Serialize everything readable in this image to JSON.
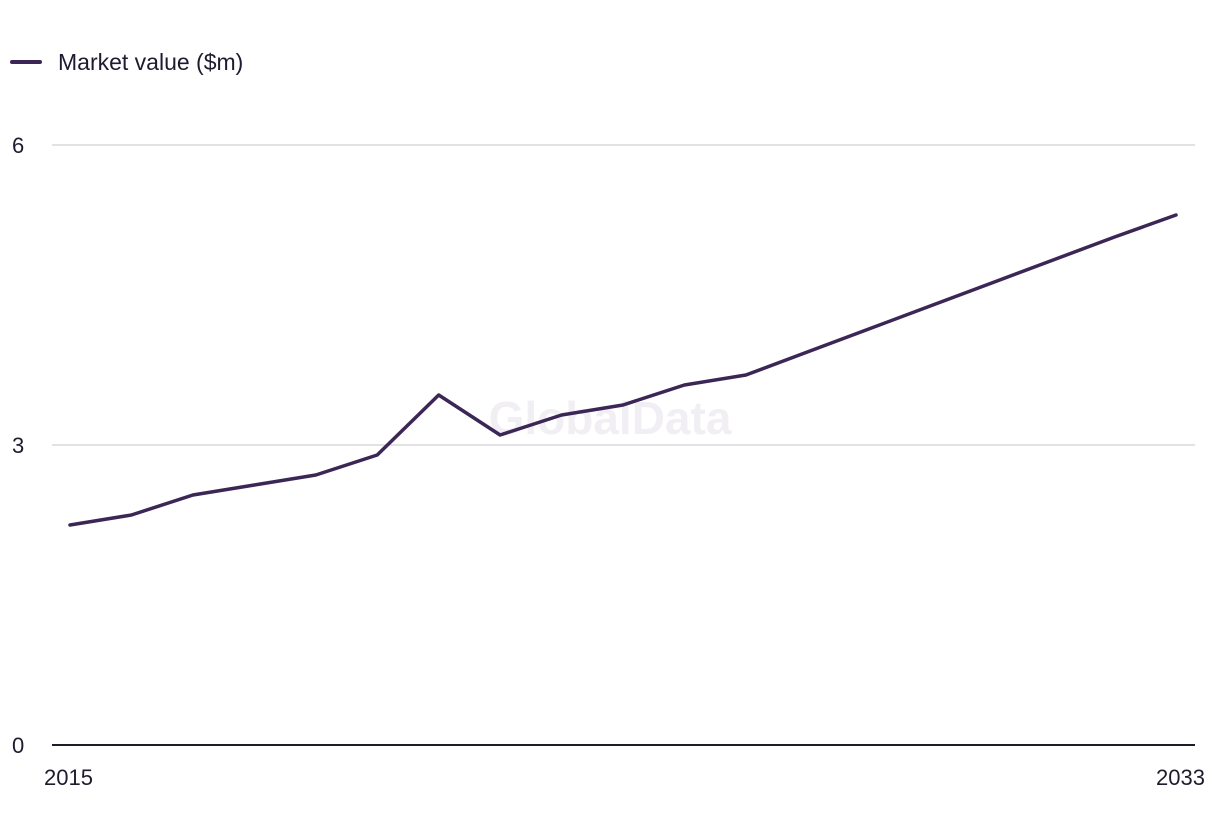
{
  "chart_data": {
    "type": "line",
    "title": "",
    "xlabel": "",
    "ylabel": "",
    "x": [
      2015,
      2016,
      2017,
      2018,
      2019,
      2020,
      2021,
      2022,
      2023,
      2024,
      2025,
      2026,
      2027,
      2028,
      2029,
      2030,
      2031,
      2032,
      2033
    ],
    "series": [
      {
        "name": "Market value ($m)",
        "color": "#3b2656",
        "values": [
          2.2,
          2.3,
          2.5,
          2.6,
          2.7,
          2.9,
          3.5,
          3.1,
          3.3,
          3.4,
          3.6,
          3.7,
          3.93,
          4.16,
          4.39,
          4.62,
          4.85,
          5.08,
          5.3
        ]
      }
    ],
    "ylim": [
      0,
      6
    ],
    "y_ticks": [
      "0",
      "3",
      "6"
    ],
    "x_tick_labels": [
      "2015",
      "2033"
    ],
    "grid": true,
    "legend_position": "top-left",
    "colors": {
      "line": "#3b2656",
      "grid": "#d9d7de",
      "axis": "#1e1b2e",
      "text": "#1e1b2e",
      "watermark": "#f1eff4"
    }
  },
  "watermark": "GlobalData"
}
